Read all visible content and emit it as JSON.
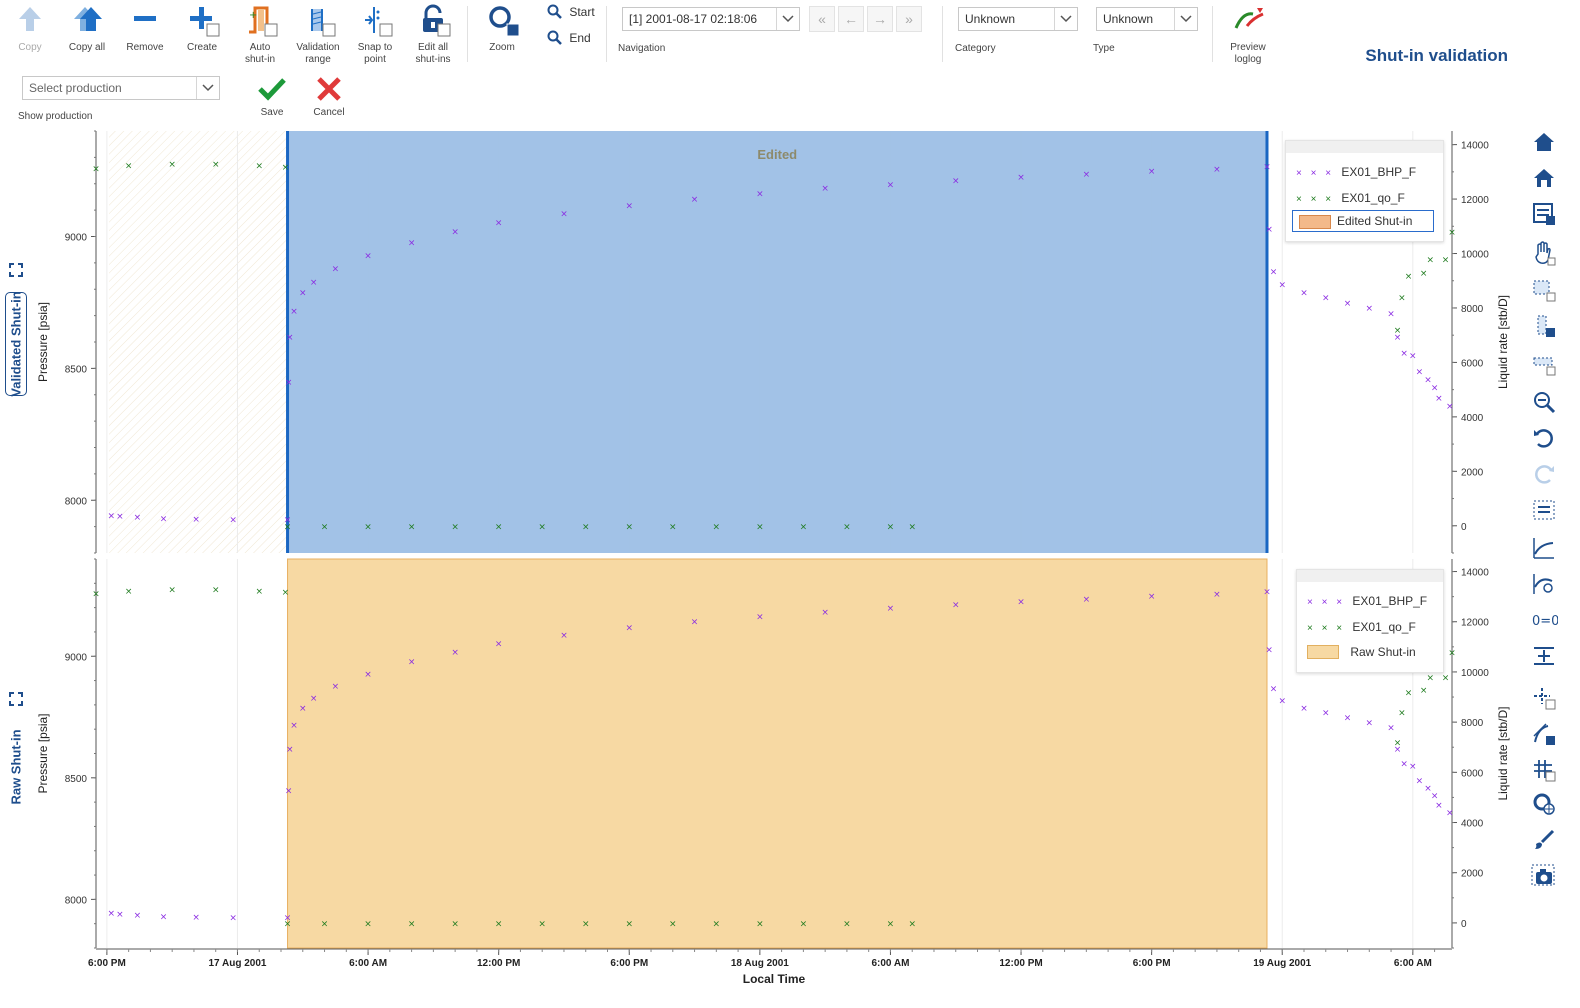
{
  "toolbar": {
    "copy": "Copy",
    "copy_all": "Copy all",
    "remove": "Remove",
    "create": "Create",
    "auto_shutin_1": "Auto",
    "auto_shutin_2": "shut-in",
    "validation_range_1": "Validation",
    "validation_range_2": "range",
    "snap_to_point_1": "Snap to",
    "snap_to_point_2": "point",
    "edit_all_1": "Edit all",
    "edit_all_2": "shut-ins",
    "zoom": "Zoom",
    "start": "Start",
    "end": "End",
    "navigation_value": "[1] 2001-08-17 02:18:06",
    "navigation_label": "Navigation",
    "category_value": "Unknown",
    "category_label": "Category",
    "type_value": "Unknown",
    "type_label": "Type",
    "preview_1": "Preview",
    "preview_2": "loglog",
    "select_production": "Select production",
    "show_production": "Show production",
    "save": "Save",
    "cancel": "Cancel"
  },
  "page_title": "Shut-in validation",
  "colors": {
    "accent": "#1f4e8c",
    "edited_fill": "#9dbfe6",
    "raw_fill": "#f7d9a3",
    "bhp": "#8a2be2",
    "qo": "#1e7b1e",
    "edited_line": "#1a66c2"
  },
  "panels": [
    {
      "side_label": "Validated Shut-in",
      "left_axis_label": "Pressure [psia]",
      "right_axis_label": "Liquid rate [stb/D]",
      "band_label": "Edited",
      "legend": [
        "EX01_BHP_F",
        "EX01_qo_F",
        "Edited Shut-in"
      ]
    },
    {
      "side_label": "Raw Shut-in",
      "left_axis_label": "Pressure [psia]",
      "right_axis_label": "Liquid rate [stb/D]",
      "band_label": "",
      "legend": [
        "EX01_BHP_F",
        "EX01_qo_F",
        "Raw Shut-in"
      ]
    }
  ],
  "x_axis": {
    "label": "Local Time",
    "ticks": [
      "6:00 PM",
      "17 Aug 2001",
      "6:00 AM",
      "12:00 PM",
      "6:00 PM",
      "18 Aug 2001",
      "6:00 AM",
      "12:00 PM",
      "6:00 PM",
      "19 Aug 2001",
      "6:00 AM"
    ]
  },
  "chart_data": [
    {
      "type": "scatter",
      "panel": "Validated Shut-in",
      "x_unit": "hours since 16 Aug 2001 18:00",
      "xlim": [
        -0.5,
        61.8
      ],
      "left_ylim": [
        7800,
        9400
      ],
      "right_ylim": [
        -1000,
        14500
      ],
      "left_ticks": [
        8000,
        8500,
        9000
      ],
      "right_ticks": [
        0,
        2000,
        4000,
        6000,
        8000,
        10000,
        12000,
        14000
      ],
      "shutin_range": [
        8.3,
        53.3
      ],
      "series": [
        {
          "name": "EX01_BHP_F",
          "axis": "left",
          "points": [
            [
              0.2,
              7945
            ],
            [
              0.6,
              7942
            ],
            [
              1.4,
              7938
            ],
            [
              2.6,
              7932
            ],
            [
              4.1,
              7930
            ],
            [
              5.8,
              7928
            ],
            [
              8.3,
              7928
            ],
            [
              8.35,
              8450
            ],
            [
              8.4,
              8620
            ],
            [
              8.6,
              8720
            ],
            [
              9.0,
              8790
            ],
            [
              9.5,
              8830
            ],
            [
              10.5,
              8880
            ],
            [
              12,
              8930
            ],
            [
              14,
              8980
            ],
            [
              16,
              9020
            ],
            [
              18,
              9055
            ],
            [
              21,
              9090
            ],
            [
              24,
              9120
            ],
            [
              27,
              9145
            ],
            [
              30,
              9165
            ],
            [
              33,
              9185
            ],
            [
              36,
              9200
            ],
            [
              39,
              9215
            ],
            [
              42,
              9228
            ],
            [
              45,
              9238
            ],
            [
              48,
              9250
            ],
            [
              51,
              9258
            ],
            [
              53.3,
              9268
            ],
            [
              53.4,
              9030
            ],
            [
              53.6,
              8870
            ],
            [
              54,
              8820
            ],
            [
              55,
              8790
            ],
            [
              56,
              8770
            ],
            [
              57,
              8750
            ],
            [
              58,
              8730
            ],
            [
              59,
              8710
            ],
            [
              59.3,
              8620
            ],
            [
              59.6,
              8560
            ],
            [
              60,
              8550
            ],
            [
              60.3,
              8490
            ],
            [
              60.7,
              8460
            ],
            [
              61,
              8430
            ],
            [
              61.2,
              8390
            ],
            [
              61.7,
              8360
            ]
          ]
        },
        {
          "name": "EX01_qo_F",
          "axis": "right",
          "points": [
            [
              -0.5,
              13150
            ],
            [
              1,
              13250
            ],
            [
              3,
              13300
            ],
            [
              5,
              13300
            ],
            [
              7,
              13250
            ],
            [
              8.2,
              13200
            ],
            [
              8.3,
              0
            ],
            [
              10,
              0
            ],
            [
              12,
              0
            ],
            [
              14,
              0
            ],
            [
              16,
              0
            ],
            [
              18,
              0
            ],
            [
              20,
              0
            ],
            [
              22,
              0
            ],
            [
              24,
              0
            ],
            [
              26,
              0
            ],
            [
              28,
              0
            ],
            [
              30,
              0
            ],
            [
              32,
              0
            ],
            [
              34,
              0
            ],
            [
              36,
              0
            ],
            [
              37,
              0
            ],
            [
              59.3,
              7200
            ],
            [
              59.5,
              8400
            ],
            [
              59.8,
              9200
            ],
            [
              60.5,
              9300
            ],
            [
              60.8,
              9800
            ],
            [
              61.5,
              9800
            ],
            [
              61.8,
              10800
            ]
          ]
        }
      ]
    },
    {
      "type": "scatter",
      "panel": "Raw Shut-in",
      "x_unit": "hours since 16 Aug 2001 18:00",
      "xlim": [
        -0.5,
        61.8
      ],
      "left_ylim": [
        7800,
        9400
      ],
      "right_ylim": [
        -1000,
        14500
      ],
      "left_ticks": [
        8000,
        8500,
        9000
      ],
      "right_ticks": [
        0,
        2000,
        4000,
        6000,
        8000,
        10000,
        12000,
        14000
      ],
      "shutin_range": [
        8.3,
        53.3
      ],
      "series": [
        {
          "name": "EX01_BHP_F",
          "axis": "left",
          "points": [
            [
              0.2,
              7945
            ],
            [
              0.6,
              7942
            ],
            [
              1.4,
              7938
            ],
            [
              2.6,
              7932
            ],
            [
              4.1,
              7930
            ],
            [
              5.8,
              7928
            ],
            [
              8.3,
              7928
            ],
            [
              8.35,
              8450
            ],
            [
              8.4,
              8620
            ],
            [
              8.6,
              8720
            ],
            [
              9.0,
              8790
            ],
            [
              9.5,
              8830
            ],
            [
              10.5,
              8880
            ],
            [
              12,
              8930
            ],
            [
              14,
              8980
            ],
            [
              16,
              9020
            ],
            [
              18,
              9055
            ],
            [
              21,
              9090
            ],
            [
              24,
              9120
            ],
            [
              27,
              9145
            ],
            [
              30,
              9165
            ],
            [
              33,
              9185
            ],
            [
              36,
              9200
            ],
            [
              39,
              9215
            ],
            [
              42,
              9228
            ],
            [
              45,
              9238
            ],
            [
              48,
              9250
            ],
            [
              51,
              9258
            ],
            [
              53.3,
              9268
            ],
            [
              53.4,
              9030
            ],
            [
              53.6,
              8870
            ],
            [
              54,
              8820
            ],
            [
              55,
              8790
            ],
            [
              56,
              8770
            ],
            [
              57,
              8750
            ],
            [
              58,
              8730
            ],
            [
              59,
              8710
            ],
            [
              59.3,
              8620
            ],
            [
              59.6,
              8560
            ],
            [
              60,
              8550
            ],
            [
              60.3,
              8490
            ],
            [
              60.7,
              8460
            ],
            [
              61,
              8430
            ],
            [
              61.2,
              8390
            ],
            [
              61.7,
              8360
            ]
          ]
        },
        {
          "name": "EX01_qo_F",
          "axis": "right",
          "points": [
            [
              -0.5,
              13150
            ],
            [
              1,
              13250
            ],
            [
              3,
              13300
            ],
            [
              5,
              13300
            ],
            [
              7,
              13250
            ],
            [
              8.2,
              13200
            ],
            [
              8.3,
              0
            ],
            [
              10,
              0
            ],
            [
              12,
              0
            ],
            [
              14,
              0
            ],
            [
              16,
              0
            ],
            [
              18,
              0
            ],
            [
              20,
              0
            ],
            [
              22,
              0
            ],
            [
              24,
              0
            ],
            [
              26,
              0
            ],
            [
              28,
              0
            ],
            [
              30,
              0
            ],
            [
              32,
              0
            ],
            [
              34,
              0
            ],
            [
              36,
              0
            ],
            [
              37,
              0
            ],
            [
              59.3,
              7200
            ],
            [
              59.5,
              8400
            ],
            [
              59.8,
              9200
            ],
            [
              60.5,
              9300
            ],
            [
              60.8,
              9800
            ],
            [
              61.5,
              9800
            ],
            [
              61.8,
              10800
            ]
          ]
        }
      ]
    }
  ]
}
